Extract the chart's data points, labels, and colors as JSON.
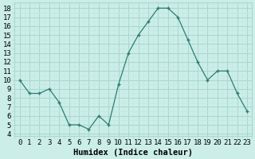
{
  "x": [
    0,
    1,
    2,
    3,
    4,
    5,
    6,
    7,
    8,
    9,
    10,
    11,
    12,
    13,
    14,
    15,
    16,
    17,
    18,
    19,
    20,
    21,
    22,
    23
  ],
  "y": [
    10,
    8.5,
    8.5,
    9.0,
    7.5,
    5.0,
    5.0,
    4.5,
    6.0,
    5.0,
    9.5,
    13.0,
    15.0,
    16.5,
    18.0,
    18.0,
    17.0,
    14.5,
    12.0,
    10.0,
    11.0,
    11.0,
    8.5,
    6.5
  ],
  "line_color": "#2d7d74",
  "marker_color": "#2d7d74",
  "bg_color": "#cceee8",
  "grid_major_color": "#aad8d0",
  "grid_minor_color": "#c0e8e2",
  "xlabel": "Humidex (Indice chaleur)",
  "xlim": [
    -0.5,
    23.5
  ],
  "ylim": [
    3.8,
    18.6
  ],
  "yticks": [
    4,
    5,
    6,
    7,
    8,
    9,
    10,
    11,
    12,
    13,
    14,
    15,
    16,
    17,
    18
  ],
  "xticks": [
    0,
    1,
    2,
    3,
    4,
    5,
    6,
    7,
    8,
    9,
    10,
    11,
    12,
    13,
    14,
    15,
    16,
    17,
    18,
    19,
    20,
    21,
    22,
    23
  ],
  "tick_fontsize": 6.5,
  "label_fontsize": 7.5
}
